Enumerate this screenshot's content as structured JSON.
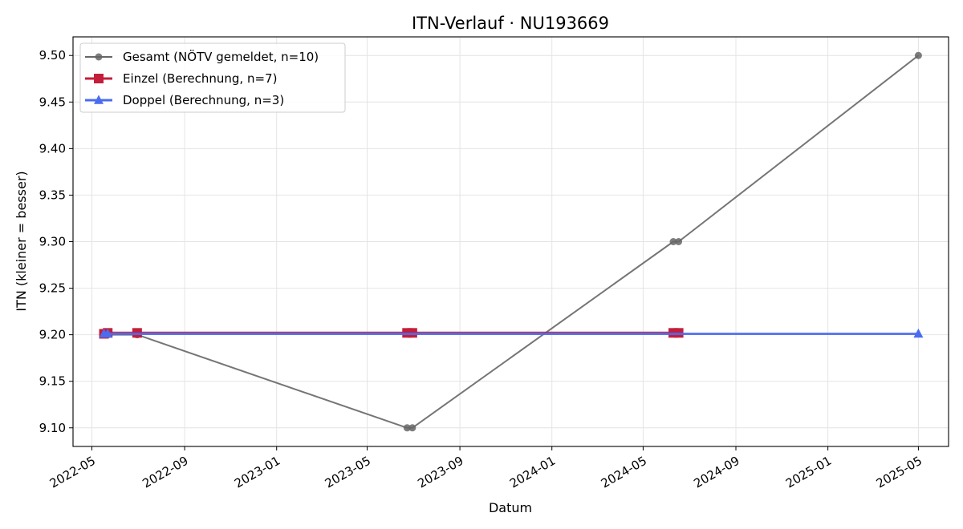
{
  "chart_data": {
    "type": "line",
    "title": "ITN-Verlauf · NU193669",
    "xlabel": "Datum",
    "ylabel": "ITN  (kleiner = besser)",
    "xlim": [
      "2022-04-06",
      "2025-06-10"
    ],
    "ylim": [
      9.08,
      9.52
    ],
    "x_ticks": [
      "2022-05",
      "2022-09",
      "2023-01",
      "2023-05",
      "2023-09",
      "2024-01",
      "2024-05",
      "2024-09",
      "2025-01",
      "2025-05"
    ],
    "y_ticks": [
      9.1,
      9.15,
      9.2,
      9.25,
      9.3,
      9.35,
      9.4,
      9.45,
      9.5
    ],
    "grid": true,
    "legend_position": "top-left",
    "series": [
      {
        "name": "Gesamt (NÖTV gemeldet, n=10)",
        "color": "#666666",
        "marker": "circle",
        "x": [
          "2022-05-17",
          "2022-05-19",
          "2022-05-22",
          "2022-06-30",
          "2023-06-23",
          "2023-06-30",
          "2024-06-10",
          "2024-06-17",
          "2025-05-01"
        ],
        "y": [
          9.2,
          9.2,
          9.2,
          9.2,
          9.1,
          9.1,
          9.3,
          9.3,
          9.5
        ]
      },
      {
        "name": "Einzel (Berechnung, n=7)",
        "color": "#c41e3a",
        "marker": "square",
        "x": [
          "2022-05-17",
          "2022-05-22",
          "2022-06-30",
          "2023-06-23",
          "2023-06-30",
          "2024-06-10",
          "2024-06-17"
        ],
        "y": [
          9.201,
          9.202,
          9.202,
          9.202,
          9.202,
          9.202,
          9.202
        ]
      },
      {
        "name": "Doppel (Berechnung, n=3)",
        "color": "#4a6cf0",
        "marker": "triangle",
        "x": [
          "2022-05-17",
          "2022-05-22",
          "2025-05-01"
        ],
        "y": [
          9.201,
          9.201,
          9.201
        ]
      }
    ]
  }
}
